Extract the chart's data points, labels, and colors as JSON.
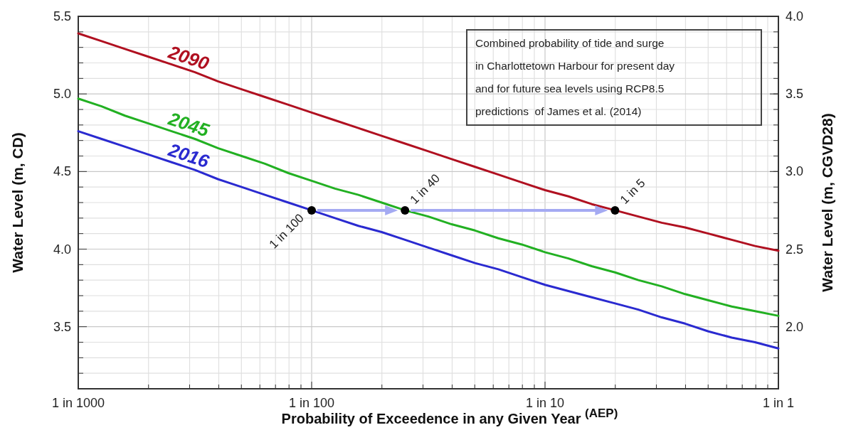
{
  "chart_data": {
    "type": "line",
    "xlabel": "Probability of Exceedence in any Given Year $^{(AEP)}$",
    "ylabel": "Water Level (m, CD)",
    "y2label": "Water Level (m, CGVD28)",
    "grid": true,
    "ylim": [
      3.1,
      5.5
    ],
    "y2lim": [
      1.6,
      4.0
    ],
    "categories": [
      "1 in 1000",
      null,
      null,
      null,
      null,
      null,
      null,
      null,
      null,
      null,
      "1 in 100",
      null,
      null,
      null,
      null,
      null,
      null,
      null,
      null,
      null,
      "1 in 10",
      null,
      null,
      null,
      null,
      null,
      null,
      null,
      null,
      null,
      "1 in 1"
    ],
    "yticks": [
      {
        "value": 3.2,
        "label": null
      },
      {
        "value": 3.3,
        "label": null
      },
      {
        "value": 3.4,
        "label": null
      },
      {
        "value": 3.5,
        "label": "3.5"
      },
      {
        "value": 3.6,
        "label": null
      },
      {
        "value": 3.7,
        "label": null
      },
      {
        "value": 3.8,
        "label": null
      },
      {
        "value": 3.9,
        "label": null
      },
      {
        "value": 4.0,
        "label": "4.0"
      },
      {
        "value": 4.1,
        "label": null
      },
      {
        "value": 4.2,
        "label": null
      },
      {
        "value": 4.3,
        "label": null
      },
      {
        "value": 4.4,
        "label": null
      },
      {
        "value": 4.5,
        "label": "4.5"
      },
      {
        "value": 4.6,
        "label": null
      },
      {
        "value": 4.7,
        "label": null
      },
      {
        "value": 4.8,
        "label": null
      },
      {
        "value": 4.9,
        "label": null
      },
      {
        "value": 5.0,
        "label": "5.0"
      },
      {
        "value": 5.1,
        "label": null
      },
      {
        "value": 5.2,
        "label": null
      },
      {
        "value": 5.3,
        "label": null
      },
      {
        "value": 5.4,
        "label": null
      },
      {
        "value": 5.5,
        "label": "5.5"
      }
    ],
    "y2ticks": [
      {
        "value": 2.0,
        "label": "2.0"
      },
      {
        "value": 2.5,
        "label": "2.5"
      },
      {
        "value": 3.0,
        "label": "3.0"
      },
      {
        "value": 3.5,
        "label": "3.5"
      },
      {
        "value": 4.0,
        "label": "4.0"
      }
    ],
    "series": [
      {
        "name": "2090",
        "color": "#b01020",
        "values": [
          5.39,
          5.34,
          5.29,
          5.24,
          5.19,
          5.14,
          5.08,
          5.03,
          4.98,
          4.93,
          4.88,
          4.83,
          4.78,
          4.73,
          4.68,
          4.63,
          4.58,
          4.53,
          4.48,
          4.43,
          4.38,
          4.34,
          4.29,
          4.25,
          4.21,
          4.17,
          4.14,
          4.1,
          4.06,
          4.02,
          3.99
        ]
      },
      {
        "name": "2045",
        "color": "#22b022",
        "values": [
          4.97,
          4.92,
          4.86,
          4.81,
          4.76,
          4.71,
          4.65,
          4.6,
          4.55,
          4.49,
          4.44,
          4.39,
          4.35,
          4.3,
          4.25,
          4.21,
          4.16,
          4.12,
          4.07,
          4.03,
          3.98,
          3.94,
          3.89,
          3.85,
          3.8,
          3.76,
          3.71,
          3.67,
          3.63,
          3.6,
          3.57
        ]
      },
      {
        "name": "2016",
        "color": "#2a2ad0",
        "values": [
          4.76,
          4.71,
          4.66,
          4.61,
          4.56,
          4.51,
          4.45,
          4.4,
          4.35,
          4.3,
          4.25,
          4.2,
          4.15,
          4.11,
          4.06,
          4.01,
          3.96,
          3.91,
          3.87,
          3.82,
          3.77,
          3.73,
          3.69,
          3.65,
          3.61,
          3.56,
          3.52,
          3.47,
          3.43,
          3.4,
          3.36
        ]
      },
      {
        "type": "scatter",
        "color": "#000000",
        "marker": "circle",
        "values": [
          null,
          null,
          null,
          null,
          null,
          null,
          null,
          null,
          null,
          null,
          4.25,
          null,
          null,
          null,
          4.25,
          null,
          null,
          null,
          null,
          null,
          null,
          null,
          null,
          4.25,
          null,
          null,
          null,
          null,
          null,
          null,
          null
        ]
      }
    ],
    "annotations": [
      "Combined probability of tide and surge in Charlottetown Harbour for present day and for future sea levels using RCP8.5 predictions  of James et al. (2014)",
      "1 in 100",
      "1 in 40",
      "1 in 5"
    ]
  }
}
